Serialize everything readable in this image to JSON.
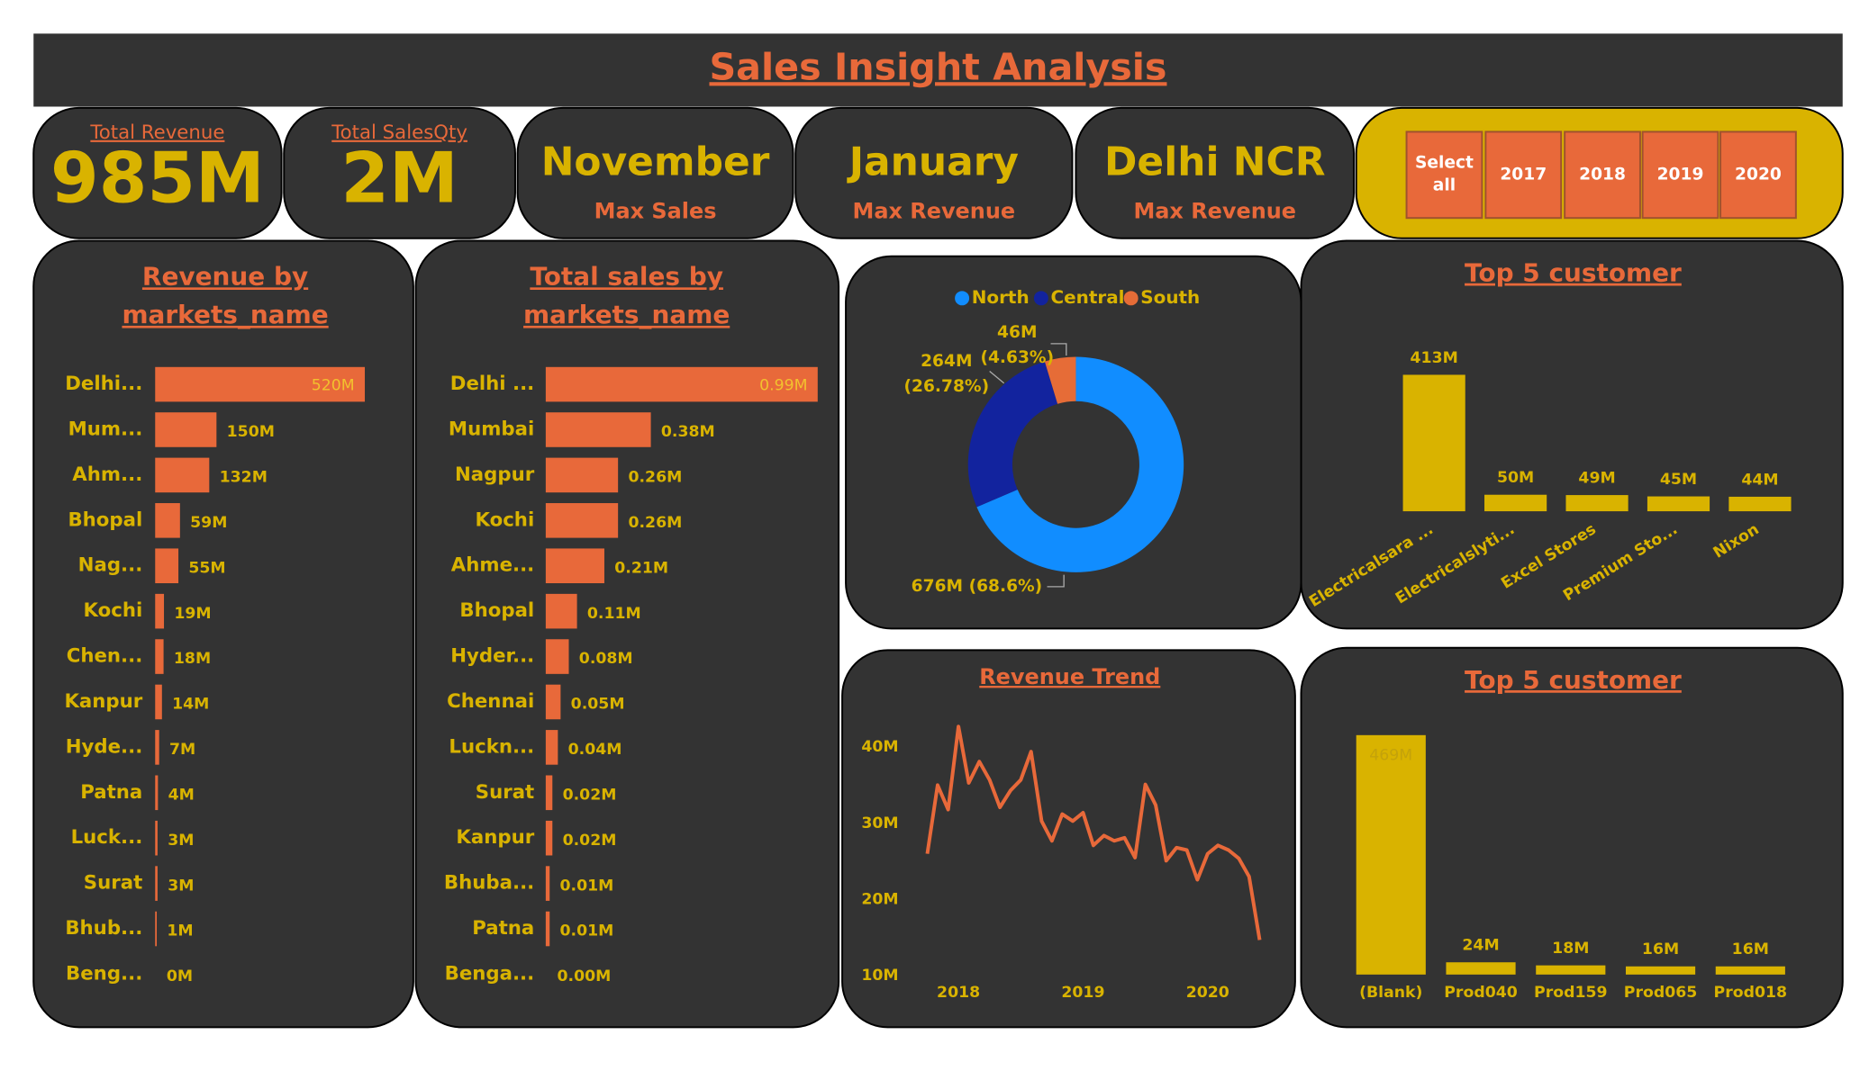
{
  "header": {
    "title": "Sales Insight Analysis"
  },
  "kpis": [
    {
      "title": "Total Revenue",
      "value": "985M"
    },
    {
      "title": "Total SalesQty",
      "value": "2M"
    },
    {
      "value": "November",
      "subtitle": "Max Sales"
    },
    {
      "value": "January",
      "subtitle": "Max Revenue"
    },
    {
      "value": "Delhi NCR",
      "subtitle": "Max Revenue"
    }
  ],
  "filter": {
    "options": [
      "Select all",
      "2017",
      "2018",
      "2019",
      "2020"
    ]
  },
  "chart_data": [
    {
      "type": "hbar",
      "title": "Revenue by markets_name",
      "color": "#e8693a",
      "categories": [
        "Delhi...",
        "Mum...",
        "Ahm...",
        "Bhopal",
        "Nag...",
        "Kochi",
        "Chen...",
        "Kanpur",
        "Hyde...",
        "Patna",
        "Luck...",
        "Surat",
        "Bhub...",
        "Beng..."
      ],
      "values": [
        520,
        150,
        132,
        59,
        55,
        19,
        18,
        14,
        7,
        4,
        3,
        3,
        1,
        0
      ],
      "value_labels": [
        "520M",
        "150M",
        "132M",
        "59M",
        "55M",
        "19M",
        "18M",
        "14M",
        "7M",
        "4M",
        "3M",
        "3M",
        "1M",
        "0M"
      ]
    },
    {
      "type": "hbar",
      "title": "Total sales by markets_name",
      "color": "#e8693a",
      "categories": [
        "Delhi ...",
        "Mumbai",
        "Nagpur",
        "Kochi",
        "Ahme...",
        "Bhopal",
        "Hyder...",
        "Chennai",
        "Luckn...",
        "Surat",
        "Kanpur",
        "Bhuba...",
        "Patna",
        "Benga..."
      ],
      "values": [
        0.99,
        0.38,
        0.26,
        0.26,
        0.21,
        0.11,
        0.08,
        0.05,
        0.04,
        0.02,
        0.02,
        0.01,
        0.01,
        0
      ],
      "value_labels": [
        "0.99M",
        "0.38M",
        "0.26M",
        "0.26M",
        "0.21M",
        "0.11M",
        "0.08M",
        "0.05M",
        "0.04M",
        "0.02M",
        "0.02M",
        "0.01M",
        "0.01M",
        "0.00M"
      ]
    },
    {
      "type": "pie",
      "donut": true,
      "categories": [
        "North",
        "Central",
        "South"
      ],
      "colors": [
        "#118dff",
        "#12239e",
        "#e66c37"
      ],
      "values": [
        676,
        264,
        46
      ],
      "value_labels": [
        "676M (68.6%)",
        "264M (26.78%)",
        "46M (4.63%)"
      ]
    },
    {
      "type": "vbar",
      "title": "Top 5 customer",
      "color": "#d9b300",
      "categories": [
        "Electricalsara ...",
        "Electricalslyti...",
        "Excel Stores",
        "Premium Sto...",
        "Nixon"
      ],
      "values": [
        413,
        50,
        49,
        45,
        44
      ],
      "value_labels": [
        "413M",
        "50M",
        "49M",
        "45M",
        "44M"
      ]
    },
    {
      "type": "line",
      "title": "Revenue Trend",
      "color": "#e8693a",
      "x": [
        2017.75,
        2017.833,
        2017.917,
        2018,
        2018.083,
        2018.167,
        2018.25,
        2018.333,
        2018.417,
        2018.5,
        2018.583,
        2018.667,
        2018.75,
        2018.833,
        2018.917,
        2019,
        2019.083,
        2019.167,
        2019.25,
        2019.333,
        2019.417,
        2019.5,
        2019.583,
        2019.667,
        2019.75,
        2019.833,
        2019.917,
        2020,
        2020.083,
        2020.167,
        2020.25,
        2020.333,
        2020.417
      ],
      "values": [
        26.0,
        35.0,
        31.8,
        42.7,
        35.3,
        38.1,
        35.7,
        32.1,
        34.3,
        35.7,
        39.4,
        30.3,
        27.7,
        31.2,
        30.3,
        31.4,
        27.1,
        28.4,
        27.7,
        28.1,
        25.5,
        35.1,
        32.4,
        25.1,
        26.8,
        26.5,
        22.6,
        26.0,
        27.1,
        26.5,
        25.4,
        23.0,
        14.7
      ],
      "xlim": [
        2017.6,
        2020.5
      ],
      "xticks": [
        2018,
        2019,
        2020
      ],
      "ylim": [
        10,
        40
      ],
      "yticks": [
        {
          "value": 10,
          "label": "10M"
        },
        {
          "value": 20,
          "label": "20M"
        },
        {
          "value": 30,
          "label": "30M"
        },
        {
          "value": 40,
          "label": "40M"
        }
      ]
    },
    {
      "type": "vbar",
      "title": "Top 5 customer",
      "color": "#d9b300",
      "categories": [
        "(Blank)",
        "Prod040",
        "Prod159",
        "Prod065",
        "Prod018"
      ],
      "values": [
        469,
        24,
        18,
        16,
        16
      ],
      "value_labels": [
        "469M",
        "24M",
        "18M",
        "16M",
        "16M"
      ]
    }
  ]
}
